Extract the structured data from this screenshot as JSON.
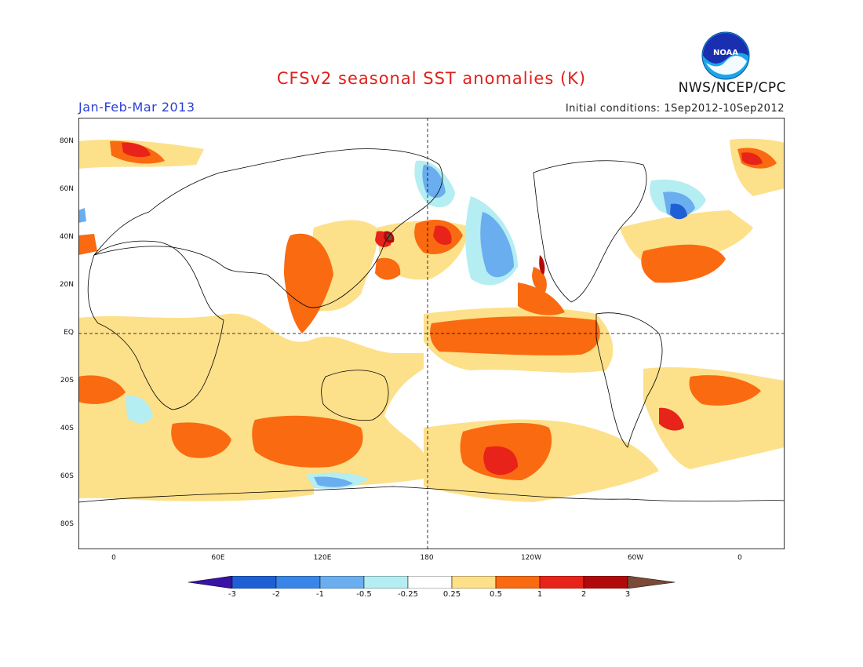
{
  "title": "CFSv2 seasonal SST anomalies (K)",
  "period": "Jan-Feb-Mar 2013",
  "initial_conditions": "Initial conditions: 1Sep2012-10Sep2012",
  "organization": "NWS/NCEP/CPC",
  "logo_text": "NOAA",
  "lat_labels": [
    "80N",
    "60N",
    "40N",
    "20N",
    "EQ",
    "20S",
    "40S",
    "60S",
    "80S"
  ],
  "lon_labels": [
    "0",
    "60E",
    "120E",
    "180",
    "120W",
    "60W",
    "0"
  ],
  "colorbar": {
    "labels": [
      "-3",
      "-2",
      "-1",
      "-0.5",
      "-0.25",
      "0.25",
      "0.5",
      "1",
      "2",
      "3"
    ],
    "colors": [
      "#3a12a6",
      "#1f5fd6",
      "#3a86e8",
      "#6aaef0",
      "#b4eef2",
      "#ffffff",
      "#fde08a",
      "#fa6a10",
      "#e8231a",
      "#b20a0a",
      "#7a4a36"
    ]
  },
  "colors": {
    "title": "#e0201a",
    "period": "#2a3fd6"
  }
}
